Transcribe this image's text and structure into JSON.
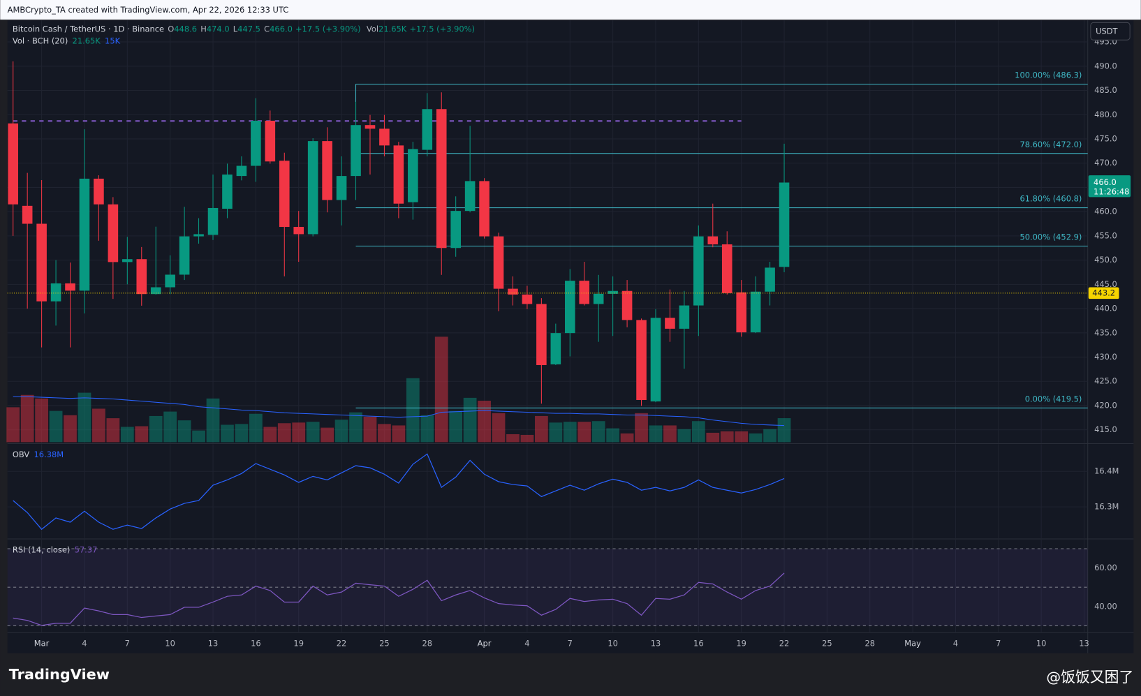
{
  "header": {
    "credit": "AMBCrypto_TA created with TradingView.com, Apr 22, 2026 12:33 UTC"
  },
  "footer": {
    "brand": "TradingView",
    "watermark": "@饭饭又困了"
  },
  "chart_data": [
    {
      "type": "candlestick",
      "title": "Bitcoin Cash / TetherUS · 1D · Binance",
      "legend": [
        {
          "key": "O",
          "value": "448.6"
        },
        {
          "key": "H",
          "value": "474.0"
        },
        {
          "key": "L",
          "value": "447.5"
        },
        {
          "key": "C",
          "value": "466.0"
        },
        {
          "value": "+17.5 (+3.90%)"
        },
        {
          "key": "Vol",
          "value": "21.65K"
        },
        {
          "value": "+17.5 (+3.90%)"
        }
      ],
      "currency": "USDT",
      "up_color": "#089981",
      "down_color": "#f23645",
      "open": [
        478.2,
        461.2,
        457.5,
        441.5,
        445.2,
        443.7,
        466.8,
        461.5,
        449.6,
        450.2,
        443.0,
        444.4,
        447.0,
        454.9,
        455.2,
        460.6,
        467.35,
        469.45,
        478.75,
        470.5,
        456.85,
        455.35,
        474.55,
        462.4,
        467.35,
        477.85,
        477.1,
        473.65,
        461.95,
        472.75,
        481.15,
        452.5,
        460.15,
        466.3,
        454.9,
        444.1,
        442.9,
        440.95,
        428.5,
        434.95,
        445.75,
        440.95,
        443.05,
        443.65,
        437.65,
        420.85,
        438.1,
        435.85,
        440.65,
        454.9,
        453.25,
        443.35,
        435.1,
        443.5,
        448.6
      ],
      "high": [
        491,
        468,
        466.5,
        450,
        449.5,
        477,
        467.5,
        463,
        454.8,
        452.7,
        456.9,
        451,
        461,
        458.65,
        467.65,
        469.9,
        471.4,
        483.4,
        480.85,
        472.15,
        460.15,
        475.15,
        477.4,
        471.4,
        482.65,
        479.95,
        479.95,
        474.4,
        474.4,
        484.45,
        484.6,
        463.15,
        477.7,
        466.9,
        455.65,
        446.65,
        444.7,
        442.15,
        436.9,
        448.15,
        449.65,
        446.95,
        446.65,
        445.9,
        437.95,
        439.9,
        443.95,
        443.65,
        457.15,
        461.65,
        455.95,
        445.9,
        446.65,
        449.65,
        474.0
      ],
      "low": [
        455,
        440,
        432,
        436.5,
        432,
        439,
        454,
        442,
        445,
        440.6,
        442.9,
        443,
        445.9,
        453.4,
        454.15,
        458.65,
        466.45,
        466.15,
        469.9,
        446.65,
        449.65,
        454.9,
        459.85,
        457.15,
        462.4,
        467.65,
        471.4,
        458.65,
        458.35,
        471.4,
        446.95,
        450.7,
        459.85,
        454.45,
        439.45,
        440.65,
        439.9,
        420.4,
        428.35,
        430.15,
        440.65,
        433.15,
        434.35,
        436.15,
        419.95,
        420.7,
        433.15,
        427.6,
        434.35,
        452.65,
        442.9,
        434.2,
        434.95,
        440.65,
        447.5
      ],
      "close": [
        461.5,
        457.5,
        441.5,
        445.2,
        443.7,
        466.8,
        461.5,
        449.6,
        450.2,
        443.0,
        444.4,
        447.0,
        454.9,
        455.35,
        460.75,
        467.65,
        469.45,
        478.75,
        470.35,
        456.85,
        455.35,
        474.55,
        462.4,
        467.35,
        477.85,
        477.1,
        473.65,
        461.65,
        472.9,
        481.15,
        452.5,
        460.15,
        466.3,
        454.9,
        444.1,
        442.9,
        440.95,
        428.35,
        434.95,
        445.75,
        440.95,
        443.05,
        443.65,
        437.65,
        421.15,
        438.1,
        435.85,
        440.65,
        454.9,
        453.25,
        443.2,
        435.1,
        443.5,
        448.45,
        466.0
      ],
      "last_price_label": "466.0",
      "countdown": "11:26:48",
      "ylim": [
        412.3,
        499.45
      ],
      "yticks": [
        {
          "value": 415,
          "label": "415.0"
        },
        {
          "value": 420,
          "label": "420.0"
        },
        {
          "value": 425,
          "label": "425.0"
        },
        {
          "value": 430,
          "label": "430.0"
        },
        {
          "value": 435,
          "label": "435.0"
        },
        {
          "value": 440,
          "label": "440.0"
        },
        {
          "value": 445,
          "label": "445.0"
        },
        {
          "value": 450,
          "label": "450.0"
        },
        {
          "value": 455,
          "label": "455.0"
        },
        {
          "value": 460,
          "label": "460.0"
        },
        {
          "value": 465,
          "label": "465.0"
        },
        {
          "value": 470,
          "label": "470.0"
        },
        {
          "value": 475,
          "label": "475.0"
        },
        {
          "value": 480,
          "label": "480.0"
        },
        {
          "value": 485,
          "label": "485.0"
        },
        {
          "value": 490,
          "label": "490.0"
        },
        {
          "value": 495,
          "label": "495.0"
        }
      ],
      "xlim": [
        -2,
        76
      ],
      "xticks": [
        {
          "value": 2,
          "label": "Mar"
        },
        {
          "value": 5,
          "label": "4"
        },
        {
          "value": 8,
          "label": "7"
        },
        {
          "value": 11,
          "label": "10"
        },
        {
          "value": 14,
          "label": "13"
        },
        {
          "value": 17,
          "label": "16"
        },
        {
          "value": 20,
          "label": "19"
        },
        {
          "value": 23,
          "label": "22"
        },
        {
          "value": 26,
          "label": "25"
        },
        {
          "value": 29,
          "label": "28"
        },
        {
          "value": 33,
          "label": "Apr"
        },
        {
          "value": 36,
          "label": "4"
        },
        {
          "value": 39,
          "label": "7"
        },
        {
          "value": 42,
          "label": "10"
        },
        {
          "value": 45,
          "label": "13"
        },
        {
          "value": 48,
          "label": "16"
        },
        {
          "value": 51,
          "label": "19"
        },
        {
          "value": 54,
          "label": "22"
        },
        {
          "value": 57,
          "label": "25"
        },
        {
          "value": 60,
          "label": "28"
        },
        {
          "value": 63,
          "label": "May"
        },
        {
          "value": 66,
          "label": "4"
        },
        {
          "value": 69,
          "label": "7"
        },
        {
          "value": 72,
          "label": "10"
        },
        {
          "value": 75,
          "label": "13"
        }
      ],
      "fib_color": "#3fb8c6",
      "fib_levels": [
        {
          "value": 486.3,
          "label": "100.00% (486.3)"
        },
        {
          "value": 472.0,
          "label": "78.60% (472.0)"
        },
        {
          "value": 460.8,
          "label": "61.80% (460.8)"
        },
        {
          "value": 452.9,
          "label": "50.00% (452.9)"
        },
        {
          "value": 419.5,
          "label": "0.00% (419.5)"
        }
      ],
      "resistance_line": {
        "value": 478.7,
        "color": "#7e57c2"
      },
      "reference_line": {
        "value": 443.2,
        "label": "443.2",
        "color": "#f5d400"
      },
      "volume": {
        "name": "Vol · BCH (20)",
        "value_label": "21.65K",
        "ma_label": "15K",
        "ma_color": "#2962ff",
        "values": [
          31.5,
          42.6,
          39.4,
          28.2,
          24.3,
          44.6,
          30.2,
          21.6,
          13.8,
          14.4,
          23.6,
          27.6,
          19.7,
          10.5,
          39.4,
          15.7,
          16.4,
          25.6,
          13.8,
          17.1,
          17.7,
          18.4,
          13.1,
          20.3,
          26.9,
          23.0,
          16.4,
          15.1,
          57.7,
          24.3,
          95.1,
          28.2,
          40.0,
          37.4,
          26.2,
          7.2,
          6.6,
          23.6,
          17.7,
          18.4,
          18.4,
          19.0,
          12.5,
          7.9,
          26.2,
          15.1,
          15.1,
          11.8,
          19.0,
          8.5,
          9.8,
          9.8,
          7.9,
          11.8,
          21.65
        ],
        "ma_values": [
          41,
          41,
          40.5,
          40,
          39.5,
          40,
          39.5,
          39,
          38,
          37,
          36,
          35,
          34,
          32,
          31,
          30,
          29,
          28.5,
          27.5,
          26.5,
          26,
          25.5,
          25,
          24.5,
          24,
          23.5,
          23,
          22.5,
          23,
          23.5,
          27,
          27.5,
          28,
          28.5,
          28,
          27.5,
          27,
          26.5,
          26,
          26,
          25.5,
          25.5,
          25,
          24.5,
          24.5,
          24,
          23.5,
          23,
          22,
          20,
          18.5,
          17,
          16,
          15.5,
          15
        ]
      }
    },
    {
      "type": "line",
      "title": "OBV",
      "value_label": "16.38M",
      "color": "#2962ff",
      "ylim": [
        16.212,
        16.476
      ],
      "yticks": [
        {
          "value": 16.3,
          "label": "16.3M"
        },
        {
          "value": 16.4,
          "label": "16.4M"
        }
      ],
      "values": [
        16.318,
        16.284,
        16.237,
        16.269,
        16.257,
        16.288,
        16.257,
        16.237,
        16.249,
        16.239,
        16.269,
        16.294,
        16.31,
        16.318,
        16.361,
        16.376,
        16.394,
        16.422,
        16.406,
        16.39,
        16.369,
        16.386,
        16.376,
        16.396,
        16.416,
        16.41,
        16.392,
        16.367,
        16.42,
        16.449,
        16.355,
        16.384,
        16.431,
        16.392,
        16.371,
        16.363,
        16.359,
        16.329,
        16.345,
        16.361,
        16.347,
        16.365,
        16.378,
        16.369,
        16.347,
        16.355,
        16.345,
        16.355,
        16.376,
        16.355,
        16.347,
        16.339,
        16.349,
        16.363,
        16.38
      ]
    },
    {
      "type": "line",
      "title": "RSI (14, close)",
      "value_label": "57.37",
      "color": "#7e57c2",
      "band_levels": [
        30,
        50,
        70
      ],
      "ylim": [
        26.4,
        74.7
      ],
      "yticks": [
        {
          "value": 40,
          "label": "40.00"
        },
        {
          "value": 60,
          "label": "60.00"
        }
      ],
      "values": [
        34.0,
        32.8,
        30.2,
        31.3,
        31.3,
        39.2,
        37.7,
        35.8,
        35.8,
        34.3,
        35.1,
        35.8,
        39.6,
        39.6,
        42.3,
        45.3,
        46.0,
        50.6,
        48.3,
        42.3,
        42.3,
        50.6,
        46.0,
        47.5,
        52.1,
        51.3,
        50.6,
        45.3,
        48.9,
        53.6,
        43.0,
        46.0,
        48.3,
        44.5,
        41.5,
        40.8,
        40.4,
        35.5,
        38.5,
        44.2,
        42.6,
        43.4,
        43.8,
        41.5,
        35.5,
        44.2,
        43.8,
        46.0,
        52.5,
        51.7,
        47.5,
        43.8,
        48.3,
        50.6,
        57.37
      ]
    }
  ]
}
